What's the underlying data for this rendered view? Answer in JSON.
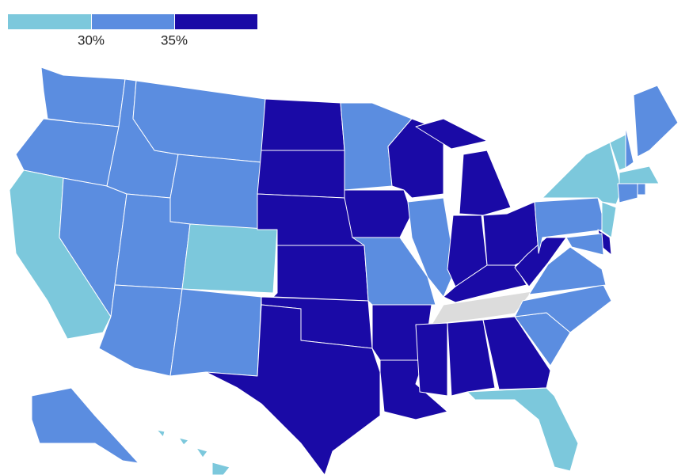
{
  "legend": {
    "bins": [
      {
        "color": "#7cc8dc"
      },
      {
        "color": "#5b8de0"
      },
      {
        "color": "#1a0aa6"
      }
    ],
    "ticks": [
      {
        "value": 30,
        "label": "30%"
      },
      {
        "value": 35,
        "label": "35%"
      }
    ],
    "no_data_color": "#dcdcdc"
  }
}
